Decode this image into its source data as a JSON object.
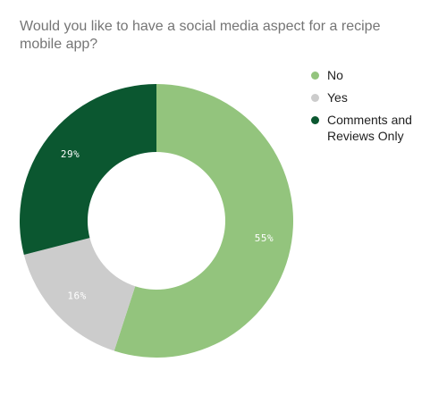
{
  "chart_data": {
    "type": "pie",
    "title": "Would you like to have a social media aspect for a recipe mobile app?",
    "categories": [
      "No",
      "Yes",
      "Comments and Reviews Only"
    ],
    "values": [
      55,
      16,
      29
    ],
    "data_labels": [
      "55%",
      "16%",
      "29%"
    ],
    "colors": [
      "#93c47d",
      "#cccccc",
      "#0b5730"
    ],
    "donut": true,
    "legend_position": "right"
  }
}
